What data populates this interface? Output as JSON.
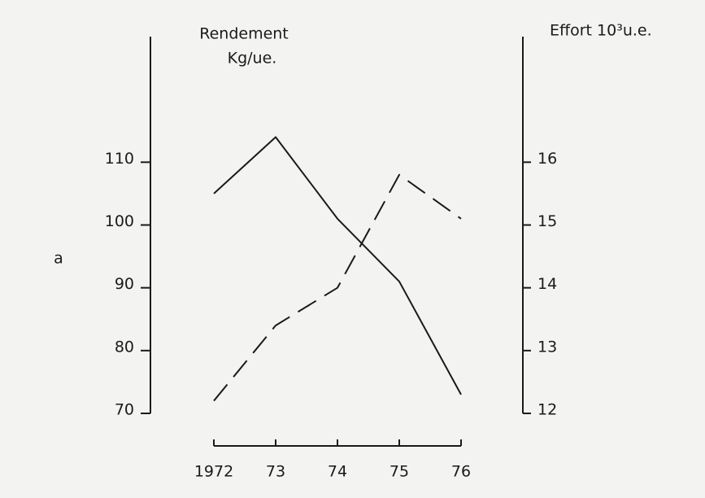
{
  "chart_data": {
    "type": "line",
    "panel_label": "a",
    "ylabel": "Rendement",
    "yunit": "Kg/ue.",
    "y2label": "Effort 10³u.e.",
    "categories": [
      "1972",
      "73",
      "74",
      "75",
      "76"
    ],
    "series": [
      {
        "color": "#1a1a1a",
        "dash": false,
        "values": [
          105,
          114,
          101,
          91,
          73
        ]
      },
      {
        "color": "#1a1a1a",
        "dash": true,
        "axis": "y2",
        "values": [
          12.2,
          13.4,
          14.0,
          15.8,
          15.1
        ]
      }
    ],
    "ylim": [
      70,
      130
    ],
    "yticks": [
      70,
      80,
      90,
      100,
      110
    ],
    "y2lim": [
      12,
      18
    ],
    "y2ticks": [
      12,
      13,
      14,
      15,
      16
    ]
  }
}
